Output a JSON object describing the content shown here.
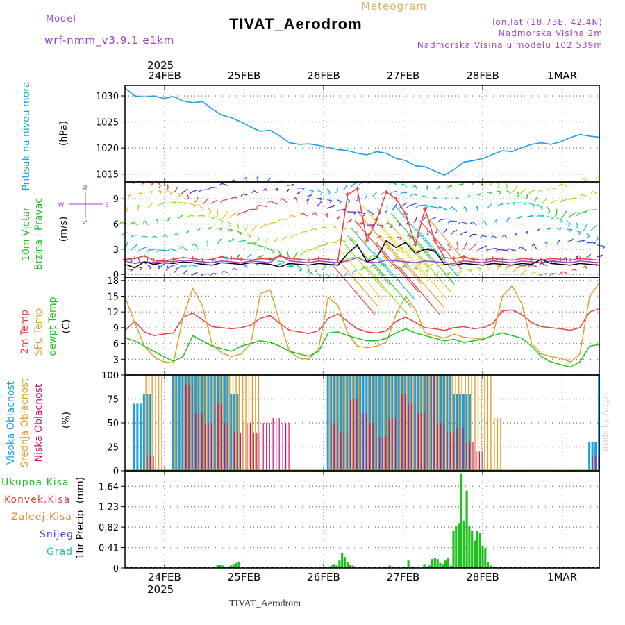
{
  "header": {
    "meteogram_label": "Meteogram",
    "model_label": "Model",
    "model_name": "wrf-nmm_v3.9.1 e1km",
    "station_title": "TIVAT_Aerodrom",
    "lonlat": "lon,lat (18.73E, 42.4N)",
    "elevation": "Nadmorska Visina 2m",
    "model_elevation": "Nadmorska Visina u modelu 102.539m",
    "watermark": "made by Angel",
    "footer_station": "TIVAT_Aerodrom"
  },
  "colors": {
    "pressure": "#1aa0e0",
    "temp_2m": "#e84040",
    "temp_sfc": "#e0a030",
    "dewpoint": "#20c020",
    "cloud_high": "#1a9ee0",
    "cloud_mid": "#e0a030",
    "cloud_low": "#d01070",
    "precip_total": "#20c020",
    "precip_conv": "#e84040",
    "precip_frozen": "#f08030",
    "precip_snow": "#4040e0",
    "precip_graupel": "#20c0a0",
    "purple_text": "#a040d0"
  },
  "chart_data": [
    {
      "type": "line",
      "ylabel": "Pritisak na nivou mora",
      "unit": "(hPa)",
      "yticks": [
        1015,
        1020,
        1025,
        1030
      ],
      "ylim": [
        1013.5,
        1032
      ],
      "x": [
        0,
        0.5,
        1,
        1.5,
        2,
        2.5,
        3,
        3.5,
        4,
        4.5,
        5,
        5.5,
        6,
        6.5,
        7,
        7.5,
        8,
        8.5,
        9,
        9.5,
        10,
        10.5,
        11,
        11.5,
        12,
        12.5,
        13,
        13.5,
        14,
        14.5,
        15,
        15.5,
        16,
        16.5,
        17,
        17.5,
        18,
        18.5,
        19,
        19.5,
        20,
        20.5,
        21,
        21.5,
        22,
        22.5,
        23,
        23.5,
        24,
        24.5
      ],
      "series": [
        {
          "name": "slp",
          "values": [
            1031.5,
            1030.0,
            1029.8,
            1030.0,
            1029.5,
            1029.9,
            1029.0,
            1028.7,
            1028.9,
            1027.5,
            1026.3,
            1025.8,
            1025.0,
            1024.0,
            1023.2,
            1023.4,
            1022.3,
            1021.0,
            1020.7,
            1020.8,
            1020.5,
            1020.1,
            1019.7,
            1019.5,
            1019.0,
            1018.7,
            1019.3,
            1019.0,
            1018.0,
            1017.6,
            1016.6,
            1016.4,
            1015.6,
            1014.8,
            1015.9,
            1017.3,
            1017.6,
            1018.0,
            1018.8,
            1019.5,
            1019.3,
            1020.1,
            1020.7,
            1021.0,
            1020.7,
            1021.2,
            1022.0,
            1022.6,
            1022.3,
            1022.1
          ]
        }
      ]
    },
    {
      "type": "line",
      "ylabel": "10m Vjetar",
      "ylabel2": "Brzina i Pravac",
      "unit": "(m/s)",
      "compass": {
        "n": "N",
        "w": "W",
        "e": "E",
        "s": "S"
      },
      "yticks": [
        0,
        3,
        6,
        9
      ],
      "ylim": [
        -0.4,
        11
      ],
      "x": [
        0,
        0.5,
        1,
        1.5,
        2,
        2.5,
        3,
        3.5,
        4,
        4.5,
        5,
        5.5,
        6,
        6.5,
        7,
        7.5,
        8,
        8.5,
        9,
        9.5,
        10,
        10.5,
        11,
        11.5,
        12,
        12.5,
        13,
        13.5,
        14,
        14.5,
        15,
        15.5,
        16,
        16.5,
        17,
        17.5,
        18,
        18.5,
        19,
        19.5,
        20,
        20.5,
        21,
        21.5,
        22,
        22.5,
        23,
        23.5,
        24,
        24.5
      ],
      "series": [
        {
          "name": "wind_speed",
          "values": [
            1.6,
            1.3,
            1.5,
            1.4,
            1.6,
            1.5,
            1.7,
            1.6,
            1.5,
            1.4,
            1.6,
            1.5,
            1.4,
            1.6,
            1.5,
            1.4,
            2.3,
            1.6,
            1.5,
            1.4,
            1.6,
            1.5,
            1.4,
            1.6,
            2.0,
            1.5,
            1.4,
            1.7,
            1.6,
            1.5,
            1.4,
            1.6,
            1.5,
            1.4,
            1.3,
            1.6,
            1.5,
            1.4,
            1.6,
            1.5,
            1.4,
            1.6,
            1.5,
            1.4,
            1.6,
            1.5,
            1.4,
            1.6,
            1.5,
            1.4
          ]
        },
        {
          "name": "gust",
          "values": [
            1.8,
            1.9,
            2.2,
            1.7,
            1.6,
            1.8,
            2.0,
            1.9,
            1.7,
            1.8,
            2.1,
            1.9,
            1.8,
            1.7,
            1.9,
            1.8,
            2.2,
            1.9,
            1.8,
            1.7,
            1.9,
            1.8,
            1.7,
            9.5,
            10.2,
            4.0,
            6.5,
            9.8,
            9.0,
            7.2,
            3.5,
            7.8,
            4.0,
            2.0,
            1.9,
            2.1,
            1.8,
            1.7,
            1.9,
            1.8,
            1.7,
            1.9,
            1.8,
            1.7,
            1.9,
            1.8,
            1.7,
            1.9,
            1.8,
            1.7
          ]
        },
        {
          "name": "speed_black",
          "values": [
            1.2,
            0.8,
            1.5,
            1.2,
            1.4,
            1.3,
            1.5,
            1.4,
            1.2,
            1.1,
            1.4,
            1.3,
            1.2,
            1.4,
            1.3,
            1.2,
            0.9,
            1.3,
            1.2,
            1.1,
            1.3,
            1.2,
            1.1,
            2.5,
            3.5,
            1.5,
            2.0,
            4.0,
            3.2,
            3.8,
            2.5,
            3.0,
            2.8,
            1.2,
            1.1,
            1.3,
            1.2,
            1.1,
            1.3,
            1.2,
            1.1,
            1.3,
            1.2,
            1.8,
            1.3,
            1.2,
            1.1,
            1.3,
            1.2,
            1.1
          ]
        }
      ]
    },
    {
      "type": "line",
      "ylabel": "2m Temp",
      "ylabel2": "SFC Temp",
      "ylabel3": "dewpt Temp",
      "unit": "(C)",
      "yticks": [
        0,
        3,
        6,
        9,
        12,
        15,
        18
      ],
      "ylim": [
        0,
        18.5
      ],
      "x": [
        0,
        0.5,
        1,
        1.5,
        2,
        2.5,
        3,
        3.5,
        4,
        4.5,
        5,
        5.5,
        6,
        6.5,
        7,
        7.5,
        8,
        8.5,
        9,
        9.5,
        10,
        10.5,
        11,
        11.5,
        12,
        12.5,
        13,
        13.5,
        14,
        14.5,
        15,
        15.5,
        16,
        16.5,
        17,
        17.5,
        18,
        18.5,
        19,
        19.5,
        20,
        20.5,
        21,
        21.5,
        22,
        22.5,
        23,
        23.5,
        24,
        24.5
      ],
      "series": [
        {
          "name": "t2m",
          "values": [
            8.5,
            10.2,
            8.2,
            7.5,
            7.8,
            8.0,
            11.0,
            11.8,
            10.5,
            9.2,
            9.0,
            8.8,
            9.0,
            9.5,
            10.8,
            11.3,
            9.8,
            8.5,
            8.2,
            7.9,
            8.4,
            10.8,
            11.6,
            10.2,
            8.8,
            8.2,
            8.0,
            8.4,
            10.2,
            11.0,
            10.0,
            9.0,
            8.8,
            8.5,
            9.0,
            9.2,
            8.8,
            9.0,
            9.8,
            12.2,
            12.4,
            11.5,
            10.0,
            9.2,
            9.0,
            8.8,
            8.5,
            9.0,
            12.0,
            12.6
          ]
        },
        {
          "name": "tsfc",
          "values": [
            14.9,
            10.0,
            5.5,
            3.5,
            2.5,
            2.3,
            11.0,
            16.5,
            13.2,
            5.8,
            4.2,
            3.5,
            4.0,
            6.0,
            15.5,
            16.2,
            10.0,
            4.5,
            3.2,
            3.0,
            5.0,
            14.8,
            13.2,
            8.0,
            5.5,
            5.2,
            5.5,
            6.2,
            11.5,
            15.0,
            12.5,
            8.0,
            7.5,
            7.0,
            7.8,
            7.2,
            7.0,
            6.8,
            7.5,
            15.0,
            17.0,
            13.5,
            6.0,
            4.0,
            3.5,
            3.2,
            2.5,
            4.0,
            15.0,
            17.5
          ]
        },
        {
          "name": "dewpoint",
          "values": [
            7.1,
            6.5,
            5.5,
            4.5,
            3.5,
            2.6,
            3.5,
            7.5,
            6.5,
            5.5,
            5.0,
            4.5,
            5.5,
            6.0,
            6.5,
            6.2,
            5.5,
            4.5,
            4.0,
            3.6,
            4.5,
            8.0,
            8.2,
            7.5,
            7.0,
            6.5,
            6.5,
            7.0,
            8.0,
            8.8,
            8.0,
            7.5,
            7.0,
            6.5,
            6.8,
            6.2,
            6.5,
            6.8,
            7.5,
            8.0,
            7.5,
            7.0,
            5.5,
            3.5,
            2.5,
            2.0,
            1.5,
            2.5,
            5.5,
            5.8
          ]
        }
      ]
    },
    {
      "type": "bar",
      "ylabel": "Visoka Oblacnost",
      "ylabel2": "Srednja Oblacnost",
      "ylabel3": "Niska Oblacnost",
      "unit": "(%)",
      "yticks": [
        0,
        25,
        50,
        75,
        100
      ],
      "ylim": [
        0,
        100
      ],
      "x": [
        0,
        0.5,
        1,
        1.5,
        2,
        2.5,
        3,
        3.5,
        4,
        4.5,
        5,
        5.5,
        6,
        6.5,
        7,
        7.5,
        8,
        8.5,
        9,
        9.5,
        10,
        10.5,
        11,
        11.5,
        12,
        12.5,
        13,
        13.5,
        14,
        14.5,
        15,
        15.5,
        16,
        16.5,
        17,
        17.5,
        18,
        18.5,
        19,
        19.5,
        20,
        20.5,
        21,
        21.5,
        22,
        22.5,
        23,
        23.5,
        24,
        24.5
      ],
      "series": [
        {
          "name": "high",
          "values": [
            0,
            70,
            80,
            0,
            0,
            100,
            100,
            100,
            100,
            100,
            100,
            80,
            0,
            0,
            0,
            0,
            0,
            0,
            0,
            0,
            0,
            100,
            100,
            100,
            100,
            100,
            100,
            100,
            100,
            100,
            100,
            100,
            100,
            100,
            80,
            80,
            0,
            0,
            0,
            0,
            0,
            0,
            0,
            0,
            0,
            0,
            0,
            0,
            30,
            100
          ]
        },
        {
          "name": "mid",
          "values": [
            0,
            0,
            100,
            100,
            0,
            100,
            100,
            100,
            100,
            100,
            100,
            100,
            100,
            100,
            0,
            0,
            0,
            0,
            0,
            0,
            0,
            100,
            100,
            100,
            100,
            100,
            100,
            100,
            100,
            100,
            100,
            100,
            100,
            100,
            100,
            100,
            100,
            100,
            55,
            0,
            0,
            0,
            0,
            0,
            0,
            0,
            0,
            0,
            0,
            100
          ]
        },
        {
          "name": "low",
          "values": [
            0,
            0,
            15,
            0,
            0,
            0,
            90,
            60,
            50,
            70,
            50,
            40,
            50,
            40,
            50,
            55,
            50,
            0,
            0,
            0,
            0,
            50,
            40,
            75,
            60,
            50,
            35,
            55,
            80,
            70,
            60,
            100,
            50,
            40,
            45,
            30,
            20,
            0,
            0,
            0,
            0,
            0,
            0,
            0,
            0,
            0,
            0,
            0,
            15,
            0
          ]
        }
      ]
    },
    {
      "type": "bar",
      "ylabel": "1hr Precip",
      "unit": "(mm)",
      "legend": [
        "Ukupna Kisa",
        "Konvek.Kisa",
        "Zaledj.Kisa",
        "Snijeg",
        "Grad"
      ],
      "yticks": [
        0,
        0.41,
        0.82,
        1.23,
        1.64
      ],
      "ylim": [
        0,
        1.95
      ],
      "x": [
        10.0,
        10.2,
        10.4,
        10.6,
        10.8,
        11.0,
        11.2,
        11.4,
        11.6,
        18.4,
        18.6,
        18.8,
        19.0,
        19.2,
        19.4,
        19.6,
        19.8,
        20.0,
        20.2,
        20.4,
        22.6,
        22.8,
        23.0,
        23.2,
        23.4,
        23.6,
        24.2,
        24.4,
        24.6,
        25.6,
        26.0,
        26.2,
        26.4,
        26.6,
        26.8,
        27.0,
        27.2,
        27.4,
        27.6,
        27.8,
        28.0,
        28.2,
        28.4,
        28.6,
        28.8,
        29.0,
        29.2,
        29.4,
        29.6,
        29.8,
        30.0,
        30.2,
        30.4,
        30.6,
        30.8,
        31.0
      ],
      "series": [
        {
          "name": "total",
          "values": [
            0.07,
            0.07,
            0.05,
            0.03,
            0.02,
            0.05,
            0.08,
            0.1,
            0.13,
            0.03,
            0.05,
            0.08,
            0.05,
            0.15,
            0.3,
            0.22,
            0.12,
            0.07,
            0.05,
            0.03,
            0.03,
            0.02,
            0.05,
            0.03,
            0.02,
            0.02,
            0.03,
            0.15,
            0.03,
            0.08,
            0.05,
            0.18,
            0.2,
            0.18,
            0.1,
            0.08,
            0.15,
            0.2,
            0.05,
            0.75,
            0.85,
            0.9,
            1.9,
            0.95,
            1.55,
            0.85,
            0.75,
            0.55,
            0.75,
            0.7,
            0.45,
            0.4,
            0.12,
            0.05,
            0.03,
            0.02
          ]
        }
      ]
    }
  ],
  "xaxis": {
    "top_labels": [
      "24FEB",
      "25FEB",
      "26FEB",
      "27FEB",
      "28FEB",
      "1MAR"
    ],
    "bottom_labels": [
      "24FEB",
      "25FEB",
      "26FEB",
      "27FEB",
      "28FEB",
      "1MAR"
    ],
    "year_top": "2025",
    "year_bottom": "2025"
  }
}
